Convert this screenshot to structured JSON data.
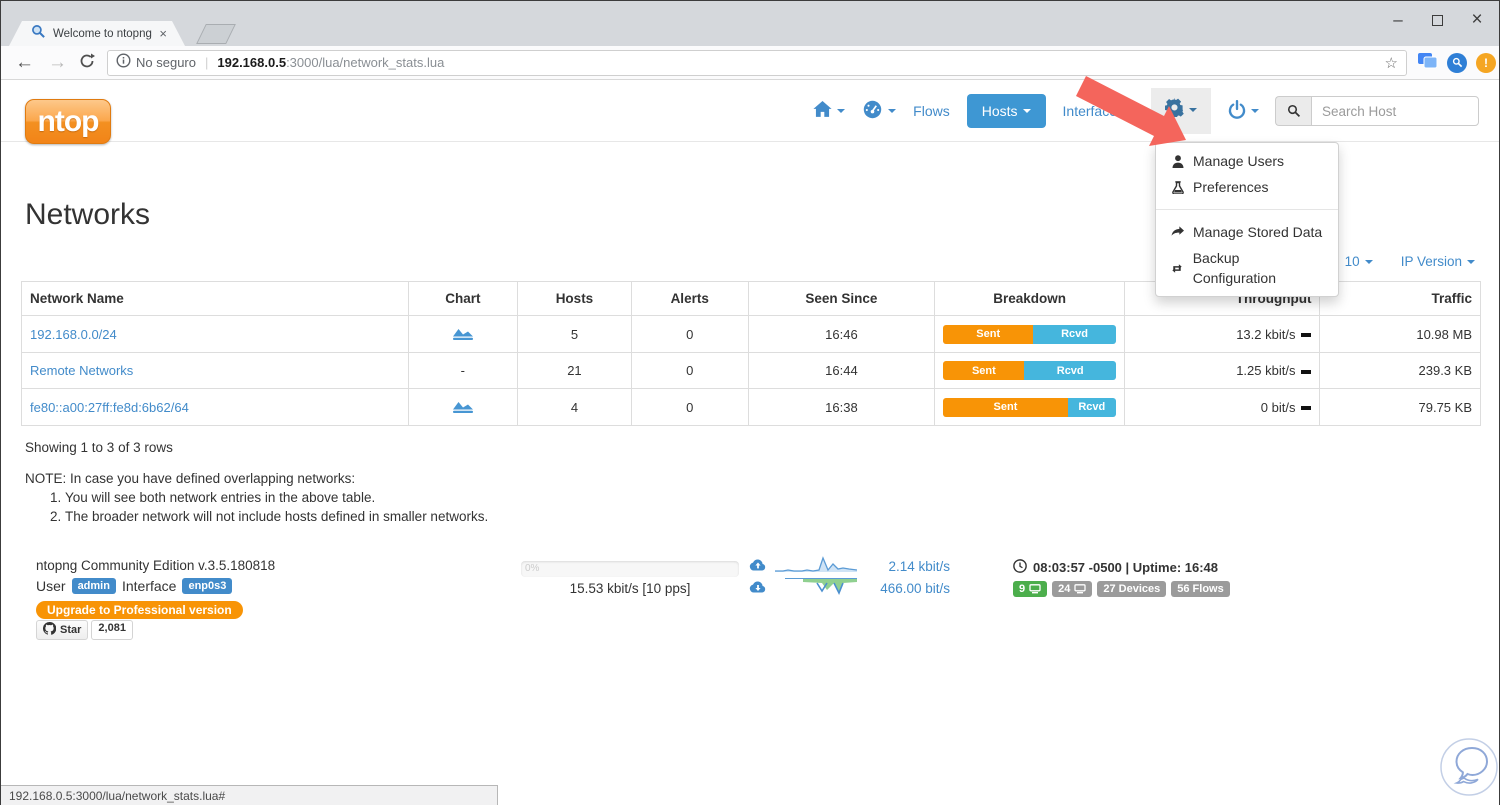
{
  "browser": {
    "tab_title": "Welcome to ntopng",
    "tab_close": "×",
    "minimize": "–",
    "close": "×",
    "back": "←",
    "forward": "→",
    "security_label": "No seguro",
    "url_host": "192.168.0.5",
    "url_rest": ":3000/lua/network_stats.lua",
    "bookmark_star": "☆",
    "ext_warning": "!"
  },
  "navbar": {
    "logo_text": "ntop",
    "flows_label": "Flows",
    "hosts_label": "Hosts",
    "interfaces_label": "Interfaces",
    "search_placeholder": "Search Host"
  },
  "settings_menu": {
    "items": [
      {
        "label": "Manage Users",
        "icon": "user-icon"
      },
      {
        "label": "Preferences",
        "icon": "flask-icon"
      },
      {
        "label": "Manage Stored Data",
        "icon": "share-icon"
      },
      {
        "label": "Backup Configuration",
        "icon": "retweet-icon"
      }
    ]
  },
  "page": {
    "title": "Networks",
    "rows_per_page": "10",
    "ip_version_label": "IP Version",
    "table": {
      "headers": [
        "Network Name",
        "Chart",
        "Hosts",
        "Alerts",
        "Seen Since",
        "Breakdown",
        "Throughput",
        "Traffic"
      ],
      "rows": [
        {
          "name": "192.168.0.0/24",
          "has_chart": true,
          "chart": "",
          "hosts": "5",
          "alerts": "0",
          "seen_since": "16:46",
          "sent_pct": 52,
          "sent_label": "Sent",
          "rcvd_label": "Rcvd",
          "throughput": "13.2 kbit/s",
          "traffic": "10.98 MB"
        },
        {
          "name": "Remote Networks",
          "has_chart": false,
          "chart": "-",
          "hosts": "21",
          "alerts": "0",
          "seen_since": "16:44",
          "sent_pct": 47,
          "sent_label": "Sent",
          "rcvd_label": "Rcvd",
          "throughput": "1.25 kbit/s",
          "traffic": "239.3 KB"
        },
        {
          "name": "fe80::a00:27ff:fe8d:6b62/64",
          "has_chart": true,
          "chart": "",
          "hosts": "4",
          "alerts": "0",
          "seen_since": "16:38",
          "sent_pct": 72,
          "sent_label": "Sent",
          "rcvd_label": "Rcvd",
          "throughput": "0 bit/s",
          "traffic": "79.75 KB"
        }
      ]
    },
    "showing_text": "Showing 1 to 3 of 3 rows",
    "note_title": "NOTE: In case you have defined overlapping networks:",
    "note_items": [
      "You will see both network entries in the above table.",
      "The broader network will not include hosts defined in smaller networks."
    ]
  },
  "footer": {
    "edition": "ntopng Community Edition v.3.5.180818",
    "user_label": "User",
    "user_value": "admin",
    "interface_label": "Interface",
    "interface_value": "enp0s3",
    "upgrade_label": "Upgrade to Professional version",
    "github_star_label": "Star",
    "github_star_count": "2,081",
    "progress_pct": "0%",
    "rate_text": "15.53 kbit/s [10 pps]",
    "upload_rate": "2.14 kbit/s",
    "download_rate": "466.00 bit/s",
    "time_text": "08:03:57 -0500 | Uptime: 16:48",
    "hosts_badge_green": "9",
    "hosts_badge_gray": "24",
    "devices_badge": "27 Devices",
    "flows_badge": "56 Flows"
  },
  "statusbar": {
    "url": "192.168.0.5:3000/lua/network_stats.lua#"
  },
  "colors": {
    "accent_blue": "#428bca",
    "hosts_button_blue": "#3e97d3",
    "sent_orange": "#f89406",
    "rcvd_blue": "#45b6dd",
    "upgrade_orange": "#f89406",
    "badge_green": "#4cae4c",
    "badge_gray": "#9b9b9b",
    "arrow_red": "#f4655c",
    "logo_orange": "#f7941d"
  }
}
